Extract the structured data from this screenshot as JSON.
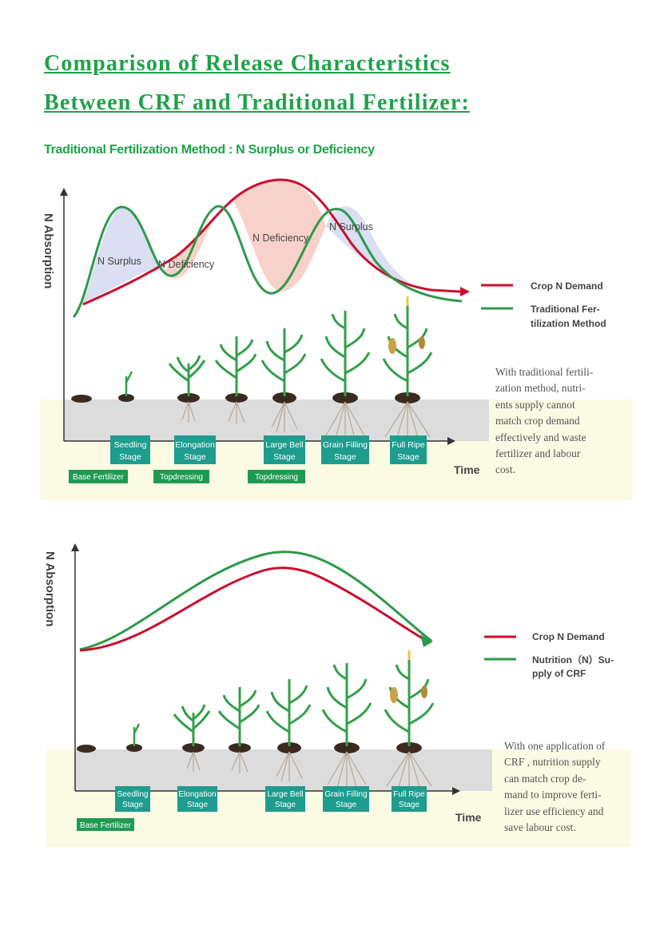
{
  "page": {
    "title_line1": "Comparison of Release Characteristics",
    "title_line2": "Between CRF and Traditional Fertilizer:",
    "subtitle": "Traditional Fertilization Method : N Surplus or Deficiency"
  },
  "chart1": {
    "ylabel": "N Absorption",
    "xlabel": "Time",
    "annotations": [
      "N Surplus",
      "N Deficiency",
      "N Deficiency",
      "N Surplus"
    ],
    "legend": [
      {
        "label_line1": "Crop N Demand",
        "label_line2": "",
        "color": "#c8102e"
      },
      {
        "label_line1": "Traditional Fer-",
        "label_line2": "tilization Method",
        "color": "#2e9a4a"
      }
    ],
    "stages": [
      {
        "line1": "Seedling",
        "line2": "Stage"
      },
      {
        "line1": "Elongation",
        "line2": "Stage"
      },
      {
        "line1": "Large Bell",
        "line2": "Stage"
      },
      {
        "line1": "Grain Filling",
        "line2": "Stage"
      },
      {
        "line1": "Full Ripe",
        "line2": "Stage"
      }
    ],
    "fertilizer_tags": [
      "Base Fertilizer",
      "Topdressing",
      "Topdressing"
    ],
    "note_lines": [
      "With traditional fertili-",
      "zation method, nutri-",
      "ents supply cannot",
      "match crop demand",
      "effectively and waste",
      "fertilizer and labour",
      "cost."
    ]
  },
  "chart2": {
    "ylabel": "N Absorption",
    "xlabel": "Time",
    "legend": [
      {
        "label_line1": "Crop N Demand",
        "label_line2": "",
        "color": "#c8102e"
      },
      {
        "label_line1": "Nutrition（N）Su-",
        "label_line2": "pply of CRF",
        "color": "#2e9a4a"
      }
    ],
    "stages": [
      {
        "line1": "Seedling",
        "line2": "Stage"
      },
      {
        "line1": "Elongation",
        "line2": "Stage"
      },
      {
        "line1": "Large Bell",
        "line2": "Stage"
      },
      {
        "line1": "Grain Filling",
        "line2": "Stage"
      },
      {
        "line1": "Full Ripe",
        "line2": "Stage"
      }
    ],
    "fertilizer_tags": [
      "Base Fertilizer"
    ],
    "note_lines": [
      "With one application of",
      "CRF , nutrition supply",
      "can match crop de-",
      "mand to improve ferti-",
      "lizer use efficiency and",
      "save labour cost."
    ]
  },
  "colors": {
    "title_green": "#1fa24a",
    "demand_red": "#c8102e",
    "supply_green": "#2e9a4a",
    "stage_box": "#1e9c8e",
    "soil_band": "#fbfae3",
    "soil_grey": "#dcdcdc",
    "surplus_fill": "#d6dcef",
    "deficiency_fill": "#f7cdc4"
  }
}
